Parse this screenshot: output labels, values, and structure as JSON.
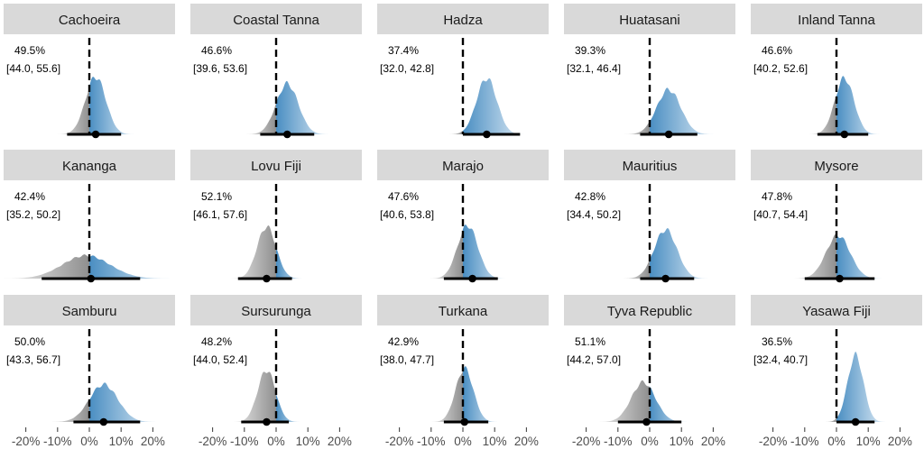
{
  "chart_data": {
    "type": "area",
    "facet_layout": "5 columns x 3 rows",
    "x_ticks": [
      "-20%",
      "-10%",
      "0%",
      "10%",
      "20%"
    ],
    "x_tick_values": [
      -20,
      -10,
      0,
      10,
      20
    ],
    "xlim": [
      -27,
      27
    ],
    "reference_line": 0,
    "colors": {
      "negative_shade": "#8c8c8c",
      "positive_shade": "#4f93c4",
      "strip_fill": "#d9d9d9",
      "strip_text": "#1a1a1a"
    },
    "panels": [
      {
        "site": "Cachoeira",
        "pct": "49.5%",
        "ci_text": "[44.0, 55.6]",
        "mean": 2,
        "lo": -7,
        "hi": 10,
        "mode": 2,
        "sd": 3.2,
        "peak": 0.8
      },
      {
        "site": "Coastal Tanna",
        "pct": "46.6%",
        "ci_text": "[39.6, 53.6]",
        "mean": 3.5,
        "lo": -5,
        "hi": 12,
        "mode": 3.5,
        "sd": 3.5,
        "peak": 0.7
      },
      {
        "site": "Hadza",
        "pct": "37.4%",
        "ci_text": "[32.0, 42.8]",
        "mean": 7.5,
        "lo": 0,
        "hi": 18,
        "mode": 7.5,
        "sd": 3.2,
        "peak": 0.78
      },
      {
        "site": "Huatasani",
        "pct": "39.3%",
        "ci_text": "[32.1, 46.4]",
        "mean": 6,
        "lo": -3,
        "hi": 15,
        "mode": 6,
        "sd": 3.8,
        "peak": 0.62
      },
      {
        "site": "Inland Tanna",
        "pct": "46.6%",
        "ci_text": "[40.2, 52.6]",
        "mean": 2.5,
        "lo": -6,
        "hi": 10,
        "mode": 2.5,
        "sd": 3.0,
        "peak": 0.78
      },
      {
        "site": "Kananga",
        "pct": "42.4%",
        "ci_text": "[35.2, 50.2]",
        "mean": 0.5,
        "lo": -15,
        "hi": 16,
        "mode": -1,
        "sd": 7.5,
        "peak": 0.32
      },
      {
        "site": "Lovu Fiji",
        "pct": "52.1%",
        "ci_text": "[46.1, 57.6]",
        "mean": -3,
        "lo": -12,
        "hi": 5,
        "mode": -3,
        "sd": 3.0,
        "peak": 0.72
      },
      {
        "site": "Marajo",
        "pct": "47.6%",
        "ci_text": "[40.6, 53.8]",
        "mean": 3,
        "lo": -6,
        "hi": 11,
        "mode": 1.5,
        "sd": 3.2,
        "peak": 0.74
      },
      {
        "site": "Mauritius",
        "pct": "42.8%",
        "ci_text": "[34.4, 50.2]",
        "mean": 5,
        "lo": -3,
        "hi": 14,
        "mode": 5,
        "sd": 3.6,
        "peak": 0.68
      },
      {
        "site": "Mysore",
        "pct": "47.8%",
        "ci_text": "[40.7, 54.4]",
        "mean": 1,
        "lo": -10,
        "hi": 12,
        "mode": 0.5,
        "sd": 3.8,
        "peak": 0.6
      },
      {
        "site": "Samburu",
        "pct": "50.0%",
        "ci_text": "[43.3, 56.7]",
        "mean": 4.5,
        "lo": -5,
        "hi": 16,
        "mode": 4.5,
        "sd": 4.5,
        "peak": 0.52
      },
      {
        "site": "Sursurunga",
        "pct": "48.2%",
        "ci_text": "[44.0, 52.4]",
        "mean": -3,
        "lo": -11,
        "hi": 4,
        "mode": -3,
        "sd": 2.8,
        "peak": 0.72
      },
      {
        "site": "Turkana",
        "pct": "42.9%",
        "ci_text": "[38.0, 47.7]",
        "mean": 0.5,
        "lo": -6,
        "hi": 8,
        "mode": 0.5,
        "sd": 2.8,
        "peak": 0.74
      },
      {
        "site": "Tyva Republic",
        "pct": "51.1%",
        "ci_text": "[44.2, 57.0]",
        "mean": -1,
        "lo": -10,
        "hi": 10,
        "mode": -2,
        "sd": 3.8,
        "peak": 0.55
      },
      {
        "site": "Yasawa Fiji",
        "pct": "36.5%",
        "ci_text": "[32.4, 40.7]",
        "mean": 6,
        "lo": 0,
        "hi": 12,
        "mode": 6,
        "sd": 2.5,
        "peak": 0.92
      }
    ]
  }
}
